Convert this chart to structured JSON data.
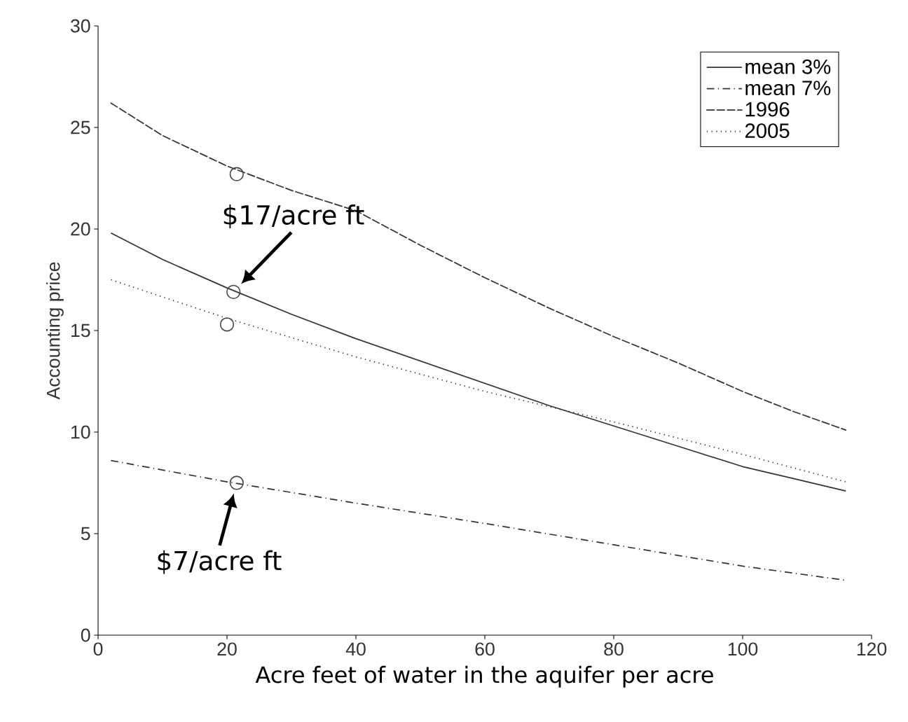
{
  "chart_data": {
    "type": "line",
    "xlabel": "Acre feet of water in the aquifer per acre",
    "ylabel": "Accounting price",
    "xlim": [
      0,
      120
    ],
    "ylim": [
      0,
      30
    ],
    "xticks": [
      0,
      20,
      40,
      60,
      80,
      100,
      120
    ],
    "yticks": [
      0,
      5,
      10,
      15,
      20,
      25,
      30
    ],
    "legend": "top right",
    "grid": false,
    "series": [
      {
        "name": "mean 3%",
        "color": "#333333",
        "line_style": "solid",
        "x": [
          2,
          10,
          20,
          30,
          40,
          50,
          60,
          70,
          80,
          90,
          100,
          108,
          116
        ],
        "values": [
          19.8,
          18.5,
          17.1,
          15.8,
          14.6,
          13.5,
          12.4,
          11.3,
          10.3,
          9.3,
          8.3,
          7.7,
          7.1
        ]
      },
      {
        "name": "mean 7%",
        "color": "#333333",
        "line_style": "dashdot",
        "x": [
          2,
          20,
          40,
          60,
          80,
          100,
          116
        ],
        "values": [
          8.6,
          7.55,
          6.5,
          5.5,
          4.45,
          3.4,
          2.7
        ]
      },
      {
        "name": "1996",
        "color": "#333333",
        "line_style": "dashed",
        "x": [
          2,
          10,
          20,
          30,
          40,
          50,
          60,
          70,
          80,
          90,
          100,
          108,
          116
        ],
        "values": [
          26.2,
          24.6,
          23.1,
          21.9,
          20.9,
          19.2,
          17.6,
          16.1,
          14.7,
          13.4,
          12.0,
          11.0,
          10.1
        ]
      },
      {
        "name": "2005",
        "color": "#333333",
        "line_style": "dotted",
        "x": [
          2,
          20,
          40,
          60,
          80,
          100,
          116
        ],
        "values": [
          17.5,
          15.6,
          13.7,
          12.0,
          10.5,
          8.9,
          7.55
        ]
      },
      {
        "type": "scatter",
        "marker": "circle",
        "color": "#444444",
        "x": [
          21.5,
          21,
          20,
          21.5
        ],
        "values": [
          22.7,
          16.9,
          15.3,
          7.5
        ]
      }
    ],
    "annotations": [
      {
        "text": "$17/acre ft",
        "x": 21,
        "y": 16.9
      },
      {
        "text": "$7/acre ft",
        "x": 21.5,
        "y": 7.5
      }
    ]
  }
}
